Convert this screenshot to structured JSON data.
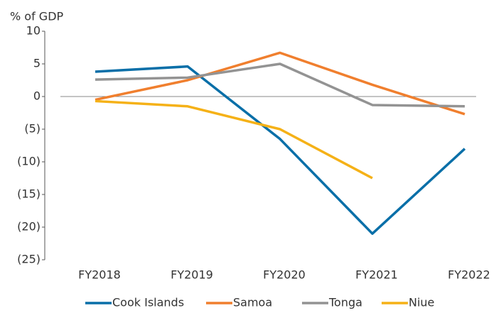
{
  "chart_data": {
    "type": "line",
    "y_axis_label": "% of GDP",
    "categories": [
      "FY2018",
      "FY2019",
      "FY2020",
      "FY2021",
      "FY2022"
    ],
    "series": [
      {
        "name": "Cook Islands",
        "color": "#0a6fa8",
        "values": [
          3.8,
          4.6,
          -6.5,
          -21,
          -8
        ]
      },
      {
        "name": "Samoa",
        "color": "#f07f2e",
        "values": [
          -0.5,
          2.5,
          6.7,
          1.8,
          -2.7
        ]
      },
      {
        "name": "Tonga",
        "color": "#939393",
        "values": [
          2.6,
          2.9,
          5.0,
          -1.3,
          -1.5
        ]
      },
      {
        "name": "Niue",
        "color": "#f5b117",
        "values": [
          -0.7,
          -1.5,
          -5.0,
          -12.5,
          null
        ]
      }
    ],
    "ylim": [
      -25,
      10
    ],
    "yticks": [
      10,
      5,
      0,
      {
        "value": -5,
        "label": "(5)"
      },
      {
        "value": -10,
        "label": "(10)"
      },
      {
        "value": -15,
        "label": "(15)"
      },
      {
        "value": -20,
        "label": "(20)"
      },
      {
        "value": -25,
        "label": "(25)"
      }
    ],
    "legend": "bottom"
  }
}
